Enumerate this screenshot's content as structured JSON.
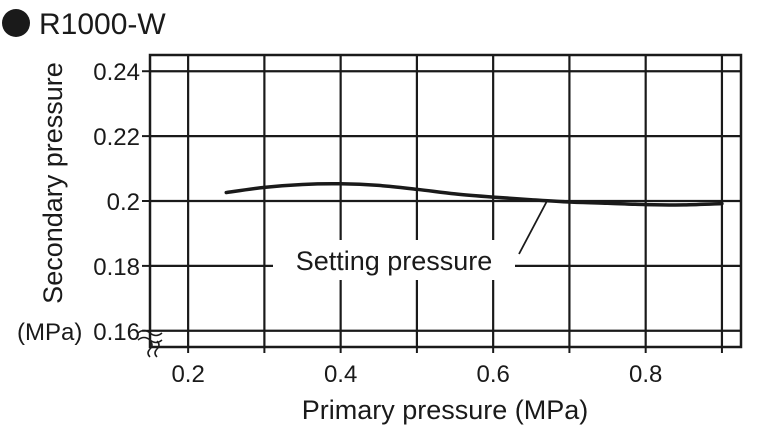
{
  "chart_data": {
    "type": "line",
    "title": "R1000-W",
    "xlabel": "Primary pressure (MPa)",
    "ylabel": "Secondary pressure",
    "yunit": "(MPa)",
    "xlim": [
      0.15,
      0.925
    ],
    "ylim": [
      0.155,
      0.245
    ],
    "xticks": [
      "0.2",
      "0.4",
      "0.6",
      "0.8"
    ],
    "yticks": [
      "0.16",
      "0.18",
      "0.2",
      "0.22",
      "0.24"
    ],
    "grid": true,
    "annotation": "Setting pressure",
    "series": [
      {
        "points": [
          [
            0.25,
            0.2026
          ],
          [
            0.3,
            0.2042
          ],
          [
            0.35,
            0.2051
          ],
          [
            0.4,
            0.2053
          ],
          [
            0.45,
            0.2048
          ],
          [
            0.5,
            0.2036
          ],
          [
            0.55,
            0.2022
          ],
          [
            0.6,
            0.2012
          ],
          [
            0.65,
            0.2004
          ],
          [
            0.7,
            0.1997
          ],
          [
            0.75,
            0.1993
          ],
          [
            0.8,
            0.1989
          ],
          [
            0.85,
            0.1988
          ],
          [
            0.9,
            0.1992
          ]
        ]
      }
    ]
  },
  "colors": {
    "line": "#1a1a1a",
    "grid": "#1a1a1a",
    "background": "#ffffff"
  }
}
